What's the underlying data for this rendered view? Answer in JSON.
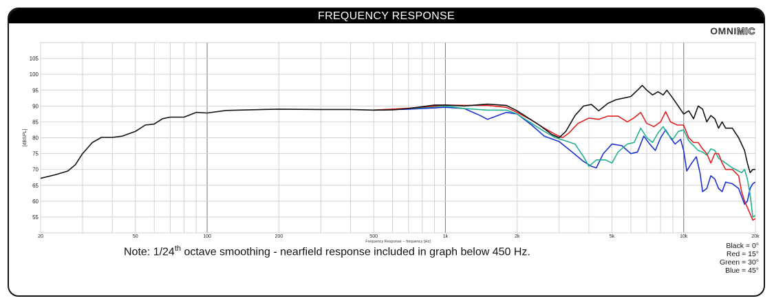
{
  "title": "FREQUENCY RESPONSE",
  "logo": {
    "bold": "OMNI",
    "light": "MIC"
  },
  "note": {
    "prefix": "Note: 1/24",
    "sup": "th",
    "suffix": " octave smoothing - nearfield response included in graph below 450 Hz."
  },
  "legend": [
    "Black = 0°",
    "Red = 15°",
    "Green = 30°",
    "Blue = 45°"
  ],
  "chart_data": {
    "type": "line",
    "xscale": "log",
    "xlim": [
      20,
      20000
    ],
    "ylim": [
      50,
      110
    ],
    "xlabel": "Frequency Response -- frequency [Hz]",
    "ylabel": "[dBSPL]",
    "grid": true,
    "xticks": [
      {
        "v": 20,
        "label": "20"
      },
      {
        "v": 50,
        "label": "50"
      },
      {
        "v": 100,
        "label": "100"
      },
      {
        "v": 200,
        "label": "200"
      },
      {
        "v": 500,
        "label": "500"
      },
      {
        "v": 1000,
        "label": "1k"
      },
      {
        "v": 2000,
        "label": "2k"
      },
      {
        "v": 5000,
        "label": "5k"
      },
      {
        "v": 10000,
        "label": "10k"
      },
      {
        "v": 20000,
        "label": "20k"
      }
    ],
    "yticks": [
      55,
      60,
      65,
      70,
      75,
      80,
      85,
      90,
      95,
      100,
      105
    ],
    "series": [
      {
        "name": "Black = 0°",
        "color": "#111111",
        "points": [
          [
            20,
            67.2
          ],
          [
            23,
            68.3
          ],
          [
            26,
            69.5
          ],
          [
            28,
            71.5
          ],
          [
            30,
            75
          ],
          [
            33,
            78.5
          ],
          [
            36,
            80.1
          ],
          [
            40,
            80.1
          ],
          [
            44,
            80.5
          ],
          [
            50,
            82
          ],
          [
            55,
            84
          ],
          [
            60,
            84.3
          ],
          [
            65,
            86
          ],
          [
            70,
            86.5
          ],
          [
            80,
            86.5
          ],
          [
            90,
            88
          ],
          [
            100,
            87.8
          ],
          [
            120,
            88.6
          ],
          [
            150,
            88.8
          ],
          [
            200,
            89
          ],
          [
            300,
            88.9
          ],
          [
            400,
            88.9
          ],
          [
            500,
            88.7
          ],
          [
            600,
            88.8
          ],
          [
            700,
            89.2
          ],
          [
            800,
            89.8
          ],
          [
            900,
            90.3
          ],
          [
            1000,
            90.3
          ],
          [
            1200,
            90
          ],
          [
            1500,
            90.6
          ],
          [
            1800,
            90.2
          ],
          [
            2000,
            88.5
          ],
          [
            2200,
            86.5
          ],
          [
            2500,
            83.8
          ],
          [
            2800,
            81
          ],
          [
            3000,
            80
          ],
          [
            3200,
            82
          ],
          [
            3500,
            87
          ],
          [
            3800,
            90
          ],
          [
            4100,
            90.5
          ],
          [
            4400,
            88.5
          ],
          [
            4800,
            90.8
          ],
          [
            5200,
            92
          ],
          [
            5600,
            92.5
          ],
          [
            6000,
            93
          ],
          [
            6400,
            95
          ],
          [
            6700,
            96.5
          ],
          [
            7000,
            95
          ],
          [
            7400,
            93.5
          ],
          [
            7800,
            94.5
          ],
          [
            8200,
            93.5
          ],
          [
            8500,
            95
          ],
          [
            9000,
            92.5
          ],
          [
            10000,
            87.5
          ],
          [
            10500,
            88.5
          ],
          [
            11000,
            86
          ],
          [
            11500,
            90
          ],
          [
            12000,
            89
          ],
          [
            12500,
            85
          ],
          [
            13000,
            87
          ],
          [
            13500,
            86
          ],
          [
            14000,
            83
          ],
          [
            14500,
            85
          ],
          [
            15000,
            83
          ],
          [
            16000,
            83
          ],
          [
            17000,
            80
          ],
          [
            18000,
            76
          ],
          [
            18500,
            72
          ],
          [
            19000,
            69
          ],
          [
            19500,
            70
          ],
          [
            20000,
            70
          ]
        ]
      },
      {
        "name": "Red = 15°",
        "color": "#e02020",
        "points": [
          [
            500,
            88.7
          ],
          [
            700,
            89.3
          ],
          [
            1000,
            90.3
          ],
          [
            1200,
            90.2
          ],
          [
            1500,
            90.2
          ],
          [
            1800,
            89.6
          ],
          [
            2000,
            88
          ],
          [
            2300,
            85.5
          ],
          [
            2600,
            83
          ],
          [
            2900,
            81
          ],
          [
            3100,
            80
          ],
          [
            3300,
            81.5
          ],
          [
            3600,
            84.5
          ],
          [
            4000,
            86.2
          ],
          [
            4400,
            85.8
          ],
          [
            4800,
            86.8
          ],
          [
            5300,
            86.8
          ],
          [
            5800,
            85
          ],
          [
            6200,
            86.3
          ],
          [
            6600,
            88
          ],
          [
            7000,
            84.5
          ],
          [
            7500,
            83.5
          ],
          [
            8000,
            85
          ],
          [
            8400,
            88.2
          ],
          [
            8800,
            85
          ],
          [
            9400,
            84
          ],
          [
            10000,
            84
          ],
          [
            10500,
            80
          ],
          [
            11000,
            78.5
          ],
          [
            11500,
            78.5
          ],
          [
            12000,
            76.5
          ],
          [
            12500,
            75
          ],
          [
            13000,
            72
          ],
          [
            13500,
            75
          ],
          [
            14000,
            75
          ],
          [
            14500,
            72
          ],
          [
            15000,
            70
          ],
          [
            16000,
            70
          ],
          [
            17000,
            68
          ],
          [
            17500,
            63
          ],
          [
            18000,
            60
          ],
          [
            18500,
            58
          ],
          [
            19000,
            56
          ],
          [
            19500,
            54
          ],
          [
            20000,
            54.5
          ]
        ]
      },
      {
        "name": "Green = 30°",
        "color": "#20b090",
        "points": [
          [
            500,
            88.7
          ],
          [
            700,
            89.2
          ],
          [
            1000,
            90
          ],
          [
            1200,
            89.2
          ],
          [
            1500,
            88.7
          ],
          [
            1800,
            88.7
          ],
          [
            2000,
            87.5
          ],
          [
            2300,
            84.5
          ],
          [
            2600,
            82
          ],
          [
            2900,
            80
          ],
          [
            3200,
            79
          ],
          [
            3500,
            78
          ],
          [
            3800,
            74
          ],
          [
            4000,
            71
          ],
          [
            4300,
            73
          ],
          [
            4700,
            73
          ],
          [
            5000,
            72
          ],
          [
            5300,
            75.5
          ],
          [
            5800,
            78
          ],
          [
            6200,
            78.5
          ],
          [
            6600,
            83
          ],
          [
            7000,
            80
          ],
          [
            7400,
            78.5
          ],
          [
            7800,
            81.5
          ],
          [
            8200,
            83.5
          ],
          [
            8600,
            81
          ],
          [
            9000,
            79.5
          ],
          [
            9500,
            82
          ],
          [
            10000,
            82.5
          ],
          [
            10500,
            79
          ],
          [
            11000,
            77.5
          ],
          [
            11500,
            76
          ],
          [
            12000,
            75.5
          ],
          [
            12500,
            74.5
          ],
          [
            13000,
            76.5
          ],
          [
            13500,
            76
          ],
          [
            14000,
            73.5
          ],
          [
            15000,
            72
          ],
          [
            16000,
            70.5
          ],
          [
            17000,
            69.5
          ],
          [
            17500,
            69
          ],
          [
            18000,
            70
          ],
          [
            18500,
            67
          ],
          [
            19000,
            62
          ],
          [
            19500,
            55
          ],
          [
            20000,
            55.5
          ]
        ]
      },
      {
        "name": "Blue = 45°",
        "color": "#1a2fcf",
        "points": [
          [
            500,
            88.7
          ],
          [
            700,
            89
          ],
          [
            1000,
            89.6
          ],
          [
            1200,
            89.2
          ],
          [
            1400,
            87
          ],
          [
            1500,
            85.8
          ],
          [
            1800,
            88
          ],
          [
            2000,
            87.5
          ],
          [
            2300,
            84
          ],
          [
            2600,
            80.5
          ],
          [
            3000,
            78.8
          ],
          [
            3400,
            75.5
          ],
          [
            3800,
            72.5
          ],
          [
            4100,
            71
          ],
          [
            4300,
            70.5
          ],
          [
            4600,
            75
          ],
          [
            5000,
            78
          ],
          [
            5500,
            77.5
          ],
          [
            6000,
            75
          ],
          [
            6400,
            75.5
          ],
          [
            6800,
            80.5
          ],
          [
            7200,
            78
          ],
          [
            7600,
            76
          ],
          [
            8000,
            80
          ],
          [
            8400,
            82.5
          ],
          [
            8800,
            80
          ],
          [
            9200,
            78
          ],
          [
            9700,
            79.5
          ],
          [
            10000,
            76
          ],
          [
            10300,
            69.5
          ],
          [
            10800,
            72
          ],
          [
            11300,
            74
          ],
          [
            11700,
            69
          ],
          [
            12000,
            63
          ],
          [
            12500,
            64
          ],
          [
            13000,
            68
          ],
          [
            13500,
            67
          ],
          [
            14000,
            64
          ],
          [
            14500,
            63
          ],
          [
            15000,
            66
          ],
          [
            16000,
            65.5
          ],
          [
            17000,
            64
          ],
          [
            18000,
            59
          ],
          [
            18500,
            60
          ],
          [
            19000,
            64
          ],
          [
            19500,
            65.5
          ],
          [
            20000,
            66
          ]
        ]
      }
    ]
  }
}
